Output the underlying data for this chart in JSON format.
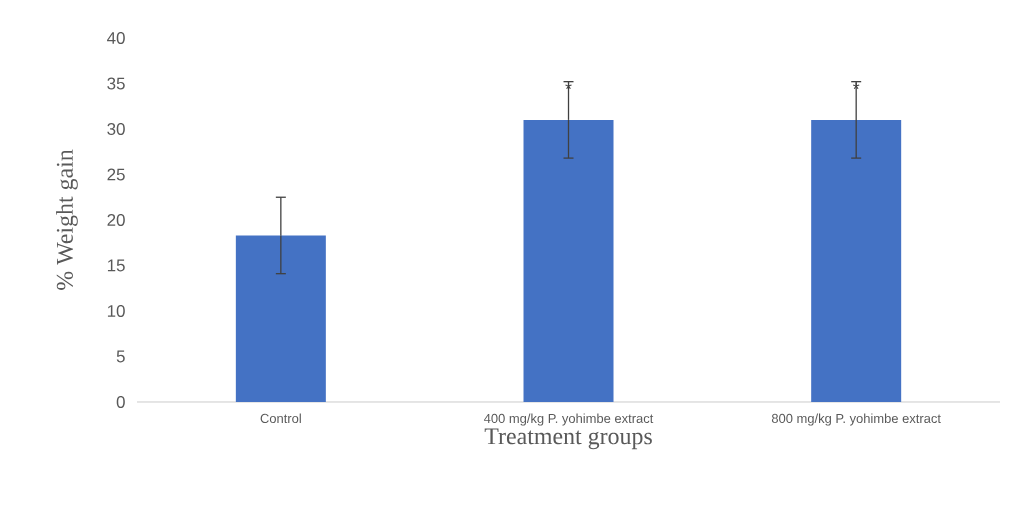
{
  "chart_data": {
    "type": "bar",
    "xlabel": "Treatment groups",
    "ylabel": "% Weight gain",
    "categories": [
      "Control",
      "400 mg/kg P. yohimbe extract",
      "800 mg/kg P. yohimbe extract"
    ],
    "values": [
      18.3,
      31.0,
      31.0
    ],
    "errors": [
      4.2,
      4.2,
      4.2
    ],
    "color": "#4472c4",
    "ylim": [
      0,
      40
    ],
    "yticks": [
      0,
      5,
      10,
      15,
      20,
      25,
      30,
      35,
      40
    ],
    "annotations": [
      {
        "text": "*",
        "x": "400 mg/kg P. yohimbe extract",
        "y": 34.4
      },
      {
        "text": "*",
        "x": "800 mg/kg P. yohimbe extract",
        "y": 34.4
      }
    ]
  }
}
